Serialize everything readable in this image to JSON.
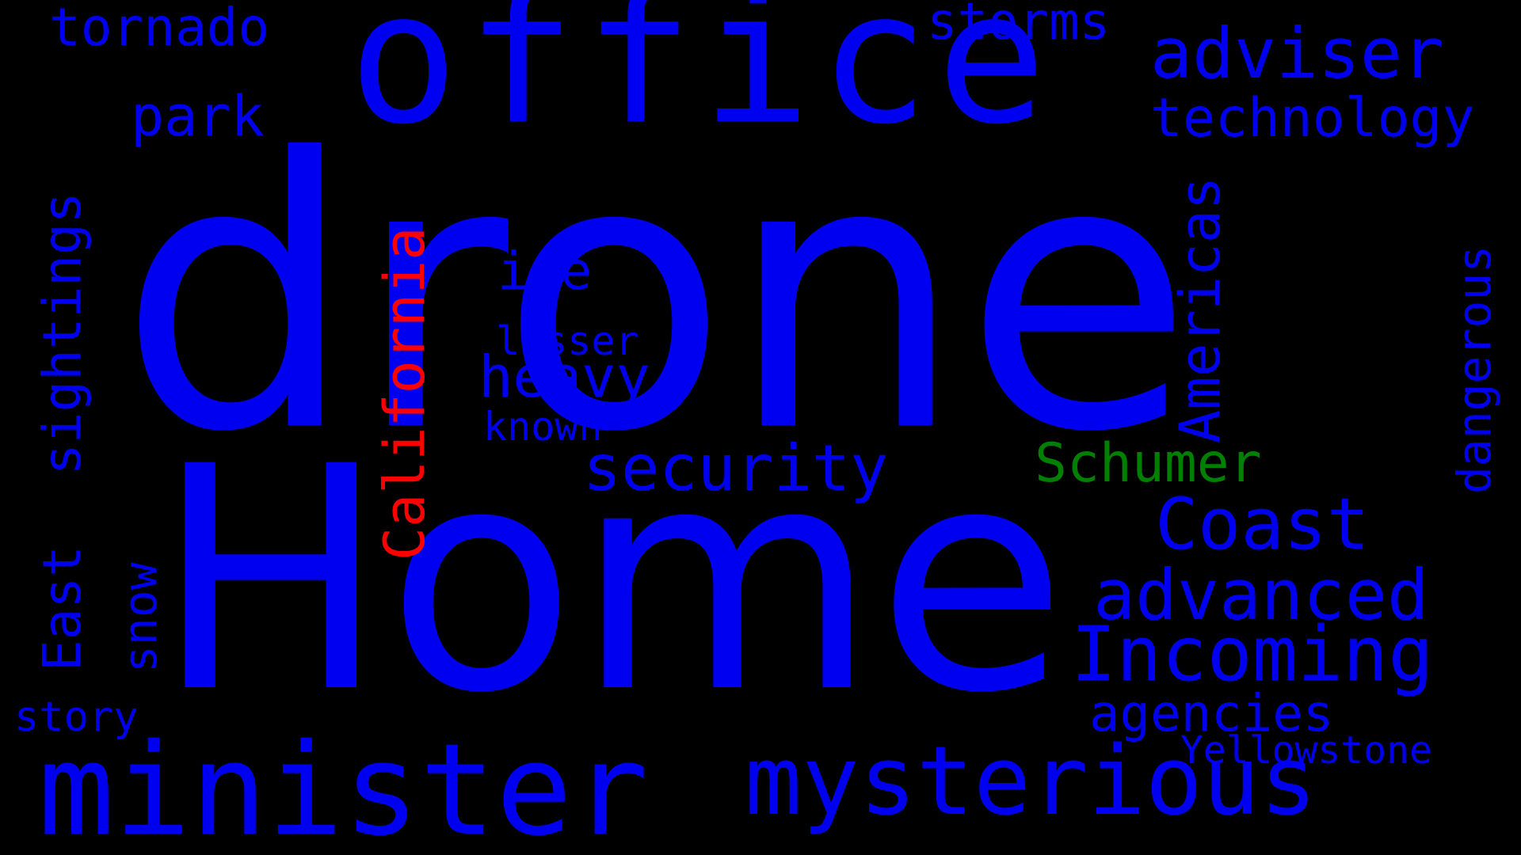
{
  "colors": {
    "background": "#000000",
    "primary": "#0000f0",
    "accent_red": "#ff0000",
    "accent_green": "#008000"
  },
  "words": {
    "drone": "drone",
    "home": "Home",
    "office": "office",
    "minister": "minister",
    "mysterious": "mysterious",
    "security": "security",
    "incoming": "Incoming",
    "advanced": "advanced",
    "coast": "Coast",
    "adviser": "adviser",
    "technology": "technology",
    "agencies": "agencies",
    "storms": "storms",
    "tornado": "tornado",
    "park": "park",
    "ice": "ice",
    "heavy": "heavy",
    "lesser": "lesser",
    "known": "known",
    "schumer": "Schumer",
    "yellowstone": "Yellowstone",
    "story": "story",
    "snow": "snow",
    "east": "East",
    "sightings": "sightings",
    "california": "California",
    "americas": "Americas",
    "dangerous": "dangerous"
  }
}
